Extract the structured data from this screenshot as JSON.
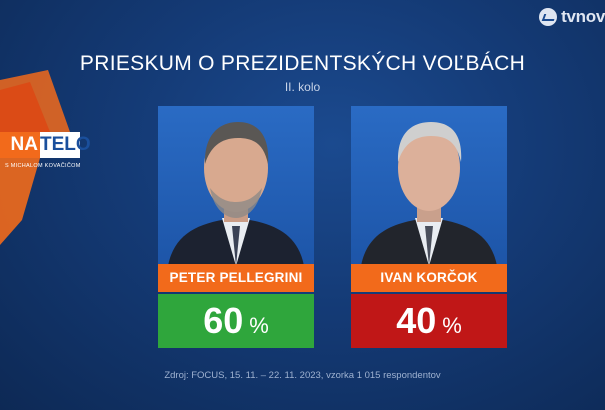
{
  "brand": {
    "name": "tvnov",
    "icon": "tvnoviny-logo-icon"
  },
  "show_logo": {
    "part1": "NA",
    "part2": "TELO",
    "subtitle": "S MICHALOM KOVAČIČOM"
  },
  "chart_data": {
    "type": "bar",
    "title": "PRIESKUM O PREZIDENTSKÝCH VOĽBÁCH",
    "subtitle": "II. kolo",
    "categories": [
      "PETER PELLEGRINI",
      "IVAN KORČOK"
    ],
    "values": [
      60,
      40
    ],
    "unit": "%",
    "colors": [
      "#2fa63c",
      "#c01717"
    ],
    "source": "Zdroj: FOCUS, 15. 11. – 22. 11. 2023, vzorka 1 015 respondentov"
  }
}
